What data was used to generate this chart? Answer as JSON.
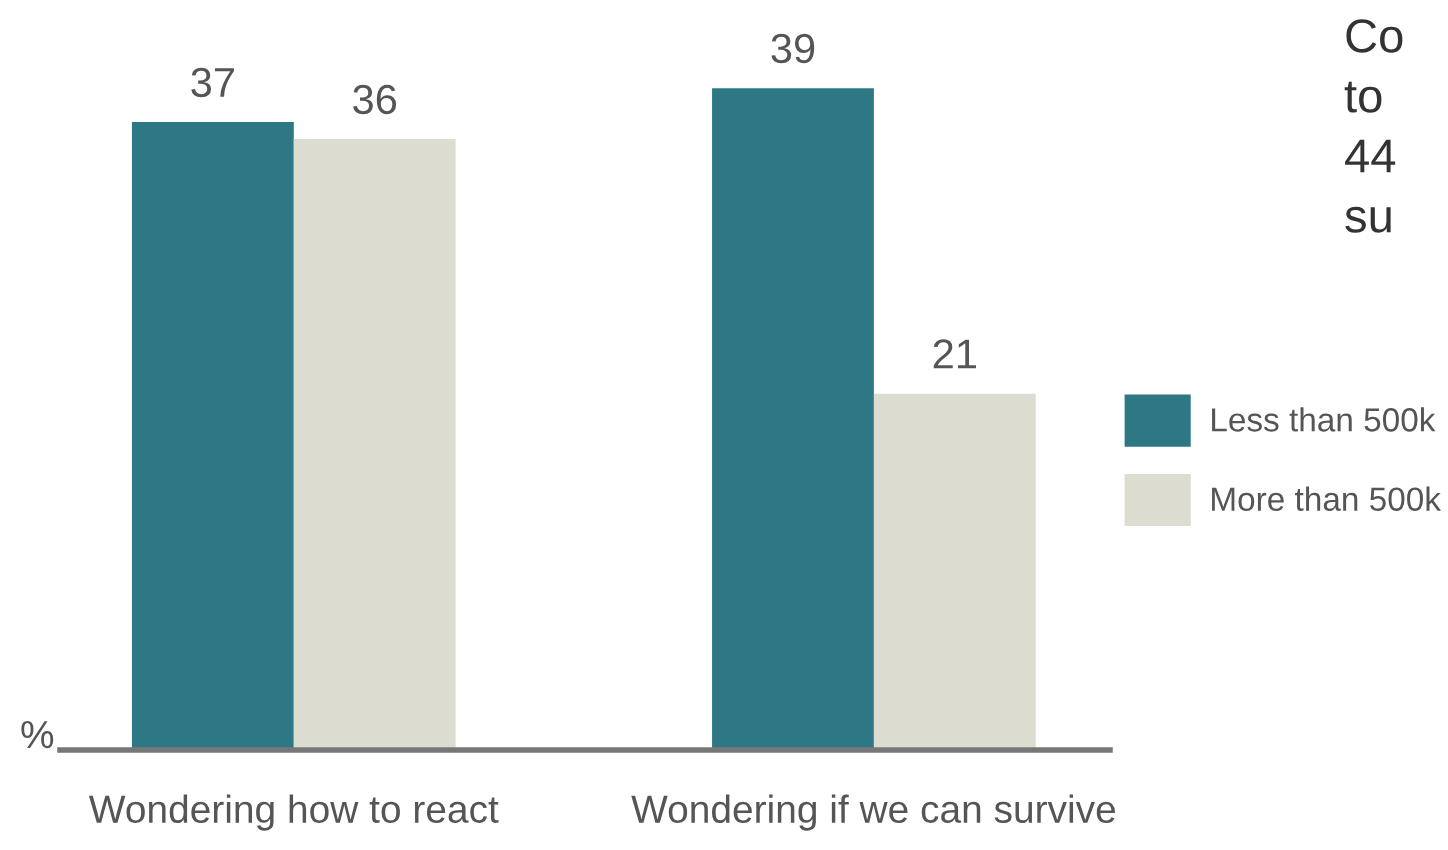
{
  "chart_data": {
    "type": "bar",
    "ylabel": "%",
    "categories": [
      "Wondering how to react",
      "Wondering if we can survive"
    ],
    "series": [
      {
        "name": "Less than 500k",
        "color": "#2e7886",
        "values": [
          37,
          39
        ]
      },
      {
        "name": "More than 500k",
        "color": "#dddcd1",
        "values": [
          36,
          21
        ]
      }
    ],
    "data_labels": true,
    "legend": "right",
    "grid": false,
    "annotations": [
      "Co",
      "to",
      "44",
      "su"
    ]
  }
}
